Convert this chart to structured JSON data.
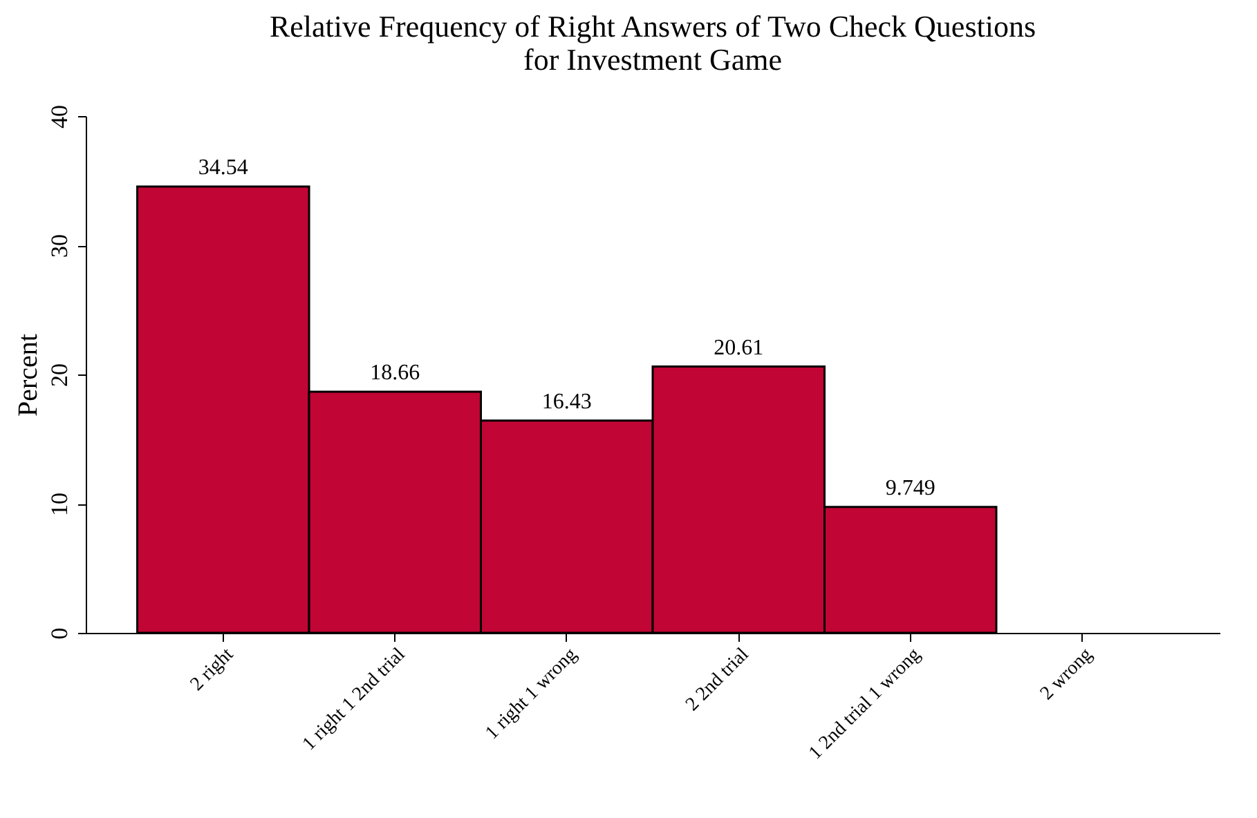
{
  "chart_data": {
    "type": "bar",
    "title": "Relative Frequency of Right Answers of Two Check Questions\nfor Investment Game",
    "ylabel": "Percent",
    "categories": [
      "2 right",
      "1 right 1 2nd trial",
      "1 right 1 wrong",
      "2 2nd trial",
      "1 2nd trial 1 wrong",
      "2 wrong"
    ],
    "values": [
      34.54,
      18.66,
      16.43,
      20.61,
      9.749,
      null
    ],
    "color": "#c10534",
    "ylim": [
      0,
      40
    ],
    "yticks": [
      0,
      10,
      20,
      30,
      40
    ],
    "grid": false,
    "data_labels": true
  }
}
